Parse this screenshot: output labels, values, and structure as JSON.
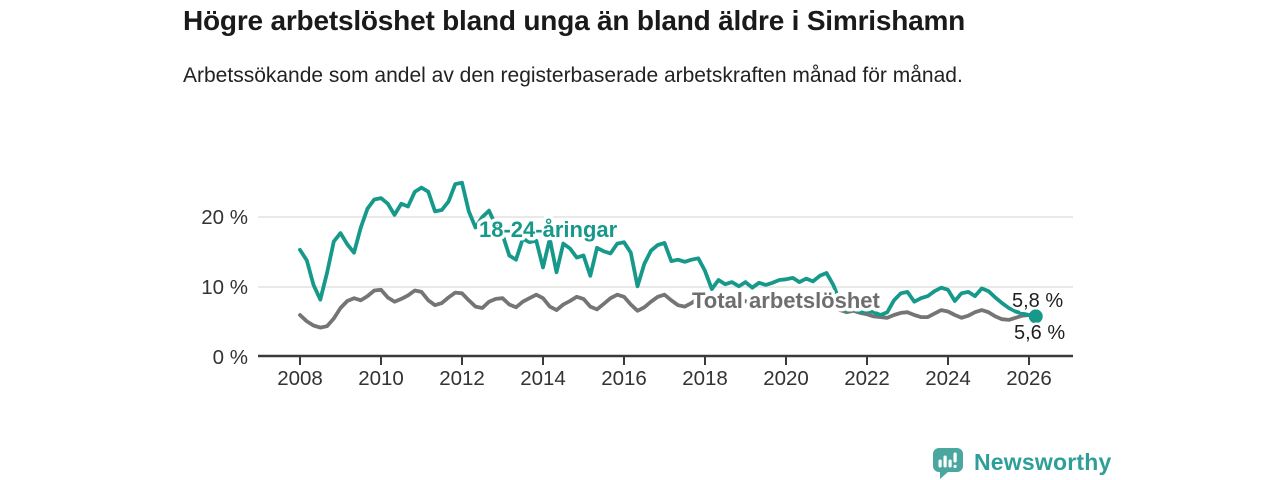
{
  "chart_data": {
    "type": "line",
    "title": "Högre arbetslöshet bland unga än bland äldre i Simrishamn",
    "subtitle": "Arbetssökande som andel av den registerbaserade arbetskraften månad för månad.",
    "x_start_year": 2008.0,
    "x_step_years": 0.1666667,
    "xlim": [
      2006.95,
      2027.1
    ],
    "ylim": [
      0,
      27
    ],
    "grid": "horizontal",
    "y_ticks": [
      {
        "value": 0,
        "label": "0 %"
      },
      {
        "value": 10,
        "label": "10 %"
      },
      {
        "value": 20,
        "label": "20 %"
      }
    ],
    "x_ticks": [
      {
        "value": 2008,
        "label": "2008"
      },
      {
        "value": 2010,
        "label": "2010"
      },
      {
        "value": 2012,
        "label": "2012"
      },
      {
        "value": 2014,
        "label": "2014"
      },
      {
        "value": 2016,
        "label": "2016"
      },
      {
        "value": 2018,
        "label": "2018"
      },
      {
        "value": 2020,
        "label": "2020"
      },
      {
        "value": 2022,
        "label": "2022"
      },
      {
        "value": 2024,
        "label": "2024"
      },
      {
        "value": 2026,
        "label": "2026"
      }
    ],
    "series": [
      {
        "name": "Total arbetslöshet",
        "color": "#757575",
        "end_label": "5,6 %",
        "end_value": 5.6,
        "values": [
          6.0,
          5.1,
          4.5,
          4.2,
          4.4,
          5.5,
          7.0,
          8.0,
          8.4,
          8.1,
          8.7,
          9.5,
          9.6,
          8.5,
          7.9,
          8.3,
          8.8,
          9.5,
          9.3,
          8.1,
          7.4,
          7.7,
          8.5,
          9.2,
          9.1,
          8.1,
          7.2,
          7.0,
          7.9,
          8.3,
          8.4,
          7.5,
          7.1,
          7.9,
          8.4,
          8.9,
          8.4,
          7.2,
          6.7,
          7.5,
          8.0,
          8.6,
          8.3,
          7.2,
          6.8,
          7.6,
          8.4,
          8.9,
          8.6,
          7.5,
          6.6,
          7.1,
          7.9,
          8.6,
          8.9,
          8.1,
          7.4,
          7.2,
          7.7,
          8.4,
          8.5,
          7.8,
          7.2,
          7.0,
          7.3,
          7.8,
          8.0,
          7.4,
          6.9,
          6.8,
          7.1,
          7.5,
          7.7,
          8.0,
          8.4,
          8.5,
          8.2,
          7.9,
          7.7,
          7.2,
          6.7,
          6.4,
          6.6,
          6.3,
          6.1,
          5.8,
          5.7,
          5.6,
          6.0,
          6.3,
          6.4,
          6.0,
          5.7,
          5.7,
          6.2,
          6.7,
          6.5,
          6.0,
          5.6,
          5.9,
          6.4,
          6.7,
          6.4,
          5.8,
          5.4,
          5.3,
          5.6,
          5.9,
          6.0,
          5.6
        ]
      },
      {
        "name": "18-24-åringar",
        "color": "#16998a",
        "end_label": "5,8 %",
        "end_value": 5.8,
        "values": [
          15.3,
          13.8,
          10.3,
          8.2,
          12.0,
          16.5,
          17.7,
          16.1,
          14.9,
          18.5,
          21.2,
          22.5,
          22.7,
          21.9,
          20.3,
          21.9,
          21.5,
          23.6,
          24.2,
          23.6,
          20.8,
          21.0,
          22.2,
          24.7,
          24.9,
          20.8,
          18.5,
          20.0,
          20.9,
          18.8,
          17.5,
          14.5,
          13.9,
          16.9,
          16.4,
          16.6,
          12.8,
          16.9,
          12.1,
          16.2,
          15.5,
          14.2,
          14.5,
          11.6,
          15.6,
          15.1,
          14.8,
          16.2,
          16.4,
          14.9,
          10.1,
          13.3,
          15.2,
          16.0,
          16.3,
          13.7,
          13.9,
          13.6,
          13.9,
          14.1,
          12.3,
          9.7,
          11.0,
          10.4,
          10.7,
          10.1,
          10.7,
          9.9,
          10.6,
          10.3,
          10.6,
          11.0,
          11.1,
          11.3,
          10.7,
          11.2,
          10.8,
          11.6,
          12.0,
          10.3,
          7.9,
          6.6,
          6.9,
          6.4,
          6.6,
          6.4,
          6.0,
          6.4,
          8.1,
          9.1,
          9.3,
          7.9,
          8.4,
          8.7,
          9.4,
          9.9,
          9.6,
          8.0,
          9.1,
          9.3,
          8.7,
          9.8,
          9.4,
          8.5,
          7.7,
          7.0,
          6.5,
          6.2,
          6.0,
          5.8
        ]
      }
    ],
    "legend_position": "inline-labels"
  },
  "branding": {
    "logo_text": "Newsworthy",
    "logo_icon": "bar-chart-speech-bubble-icon",
    "icon_color": "#4aa7a0",
    "text_color": "#2d9f98"
  },
  "style_colors": {
    "axis": "#3a3a3a",
    "gridline": "#dcdcdc",
    "tick_label": "#333333",
    "value_label": "#1f1f1f",
    "background": "#ffffff"
  }
}
